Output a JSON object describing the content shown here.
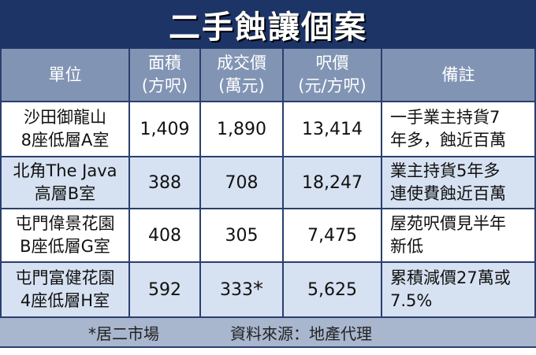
{
  "title": "二手蝕讓個案",
  "table": {
    "header": [
      [
        "單位"
      ],
      [
        "面積",
        "(方呎)"
      ],
      [
        "成交價",
        "(萬元)"
      ],
      [
        "呎價",
        "(元/方呎)"
      ],
      [
        "備註"
      ]
    ],
    "rows": [
      [
        [
          "沙田御龍山",
          "8座低層A室"
        ],
        "1,409",
        "1,890",
        "13,414",
        [
          "一手業主持貨7",
          "年多，蝕近百萬"
        ]
      ],
      [
        [
          "北角The Java",
          "高層B室"
        ],
        "388",
        "708",
        "18,247",
        [
          "業主持貨5年多",
          "連使費蝕近百萬"
        ]
      ],
      [
        [
          "屯門偉景花園",
          "B座低層G室"
        ],
        "408",
        "305",
        "7,475",
        [
          "屋苑呎價見半年",
          "新低"
        ]
      ],
      [
        [
          "屯門富健花園",
          "4座低層H室"
        ],
        "592",
        "333",
        "5,625",
        [
          "累積減價27萬或",
          "7.5%"
        ]
      ]
    ],
    "marker": {
      "row": 3,
      "col": 2,
      "text": "*"
    }
  },
  "footer": {
    "note": "*居二市場",
    "source": "資料來源：地產代理"
  }
}
